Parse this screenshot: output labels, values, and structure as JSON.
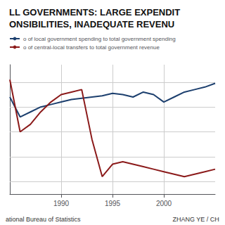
{
  "chart_data": {
    "type": "line",
    "title": "LL GOVERNMENTS: LARGE EXPENDIT\nONSIBILITIES, INADEQUATE REVENU",
    "x": [
      1985,
      1986,
      1987,
      1988,
      1989,
      1990,
      1991,
      1992,
      1993,
      1994,
      1995,
      1996,
      1997,
      1998,
      1999,
      2000,
      2001,
      2002,
      2003,
      2004,
      2005
    ],
    "series": [
      {
        "name": "o of local government spending to total government spending",
        "color": "#1c3f6e",
        "values": [
          69,
          61,
          63,
          65,
          66,
          67,
          68,
          68.5,
          69,
          69.5,
          70.5,
          70,
          69,
          71,
          70,
          67,
          69,
          71,
          72,
          73,
          74.5
        ]
      },
      {
        "name": "o of central-local transfers to total government revenue",
        "color": "#8b1a1a",
        "values": [
          76,
          55,
          58,
          63,
          67,
          70,
          71,
          72,
          52,
          37,
          42,
          43,
          42,
          41,
          40,
          39,
          38,
          37,
          38,
          39,
          40
        ]
      }
    ],
    "xlim": [
      1985,
      2005
    ],
    "xticks": [
      1990,
      1995,
      2000
    ],
    "ylim": [
      30,
      82
    ],
    "yticks": [
      35,
      45,
      55,
      65,
      75
    ],
    "grid": true,
    "tick_labels": "x",
    "legend": "top",
    "annotations": [
      "ational Bureau of Statistics",
      "ZHANG YE / CH"
    ]
  }
}
